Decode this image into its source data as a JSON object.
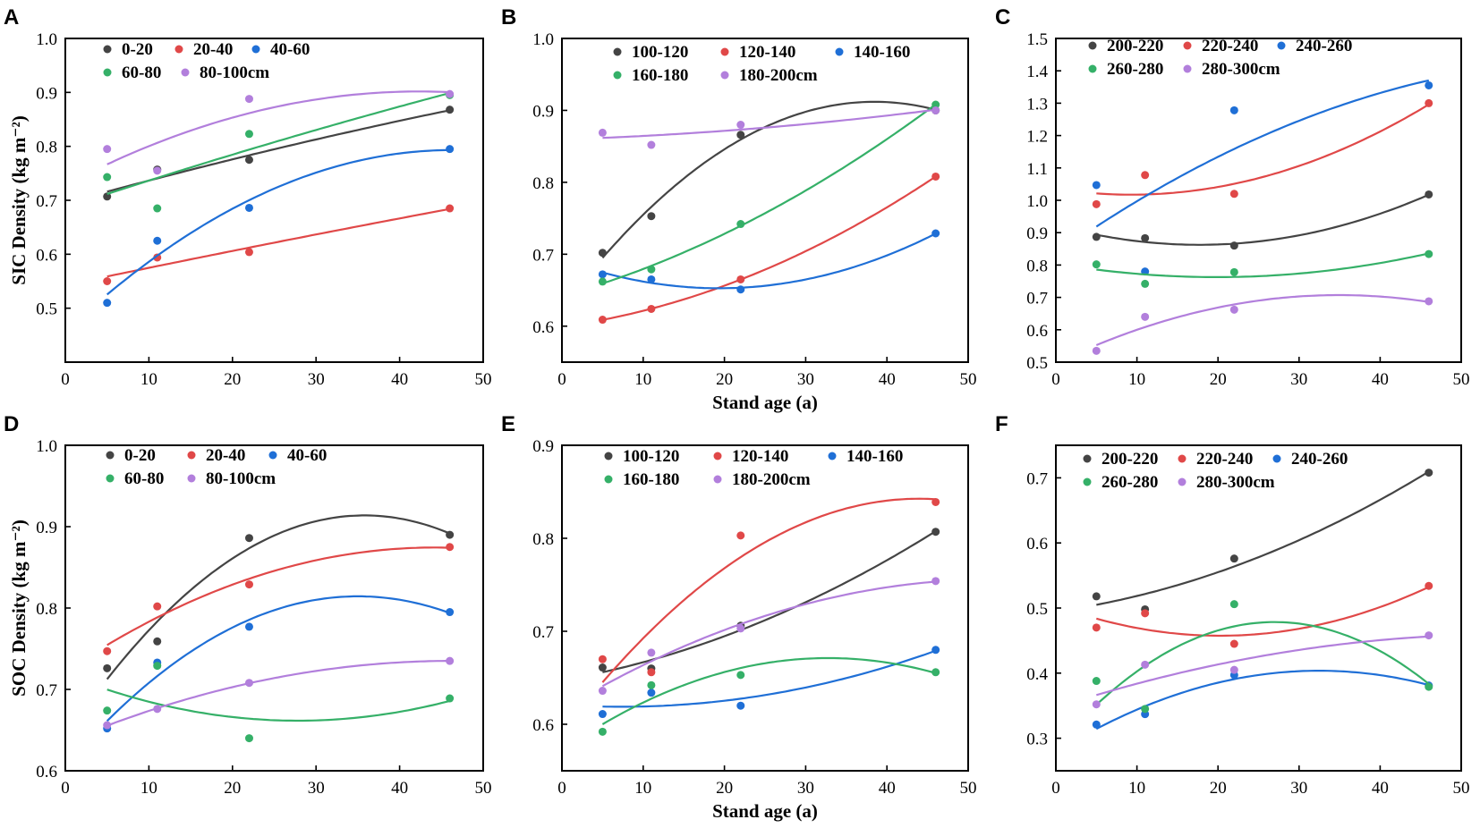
{
  "figure": {
    "shared_xlabel": "Stand age (a)",
    "row_ylabels": [
      "SIC Density (kg m⁻²)",
      "SOC Density (kg m⁻²)"
    ]
  },
  "chart_data": [
    {
      "panel": "A",
      "type": "scatter",
      "fit": "polynomial",
      "xlabel": "",
      "ylabel": "SIC Density (kg m⁻²)",
      "xlim": [
        0,
        50
      ],
      "ylim": [
        0.4,
        1.0
      ],
      "xticks": [
        0,
        10,
        20,
        30,
        40,
        50
      ],
      "yticks": [
        0.5,
        0.6,
        0.7,
        0.8,
        0.9,
        1.0
      ],
      "x": [
        5,
        11,
        22,
        46
      ],
      "series": [
        {
          "name": "0-20",
          "color": "#444444",
          "values": [
            0.707,
            0.757,
            0.775,
            0.868
          ]
        },
        {
          "name": "20-40",
          "color": "#e04848",
          "values": [
            0.55,
            0.594,
            0.604,
            0.685
          ]
        },
        {
          "name": "40-60",
          "color": "#1f6fd6",
          "values": [
            0.51,
            0.625,
            0.686,
            0.795
          ]
        },
        {
          "name": "60-80",
          "color": "#35b068",
          "values": [
            0.743,
            0.685,
            0.823,
            0.895
          ]
        },
        {
          "name": "80-100cm",
          "color": "#b27fdc",
          "values": [
            0.795,
            0.755,
            0.888,
            0.897
          ]
        }
      ]
    },
    {
      "panel": "B",
      "type": "scatter",
      "fit": "polynomial",
      "xlabel": "Stand age (a)",
      "ylabel": "",
      "xlim": [
        0,
        50
      ],
      "ylim": [
        0.55,
        1.0
      ],
      "xticks": [
        0,
        10,
        20,
        30,
        40,
        50
      ],
      "yticks": [
        0.6,
        0.7,
        0.8,
        0.9,
        1.0
      ],
      "x": [
        5,
        11,
        22,
        46
      ],
      "series": [
        {
          "name": "100-120",
          "color": "#444444",
          "values": [
            0.702,
            0.753,
            0.866,
            0.9
          ]
        },
        {
          "name": "120-140",
          "color": "#e04848",
          "values": [
            0.609,
            0.624,
            0.665,
            0.808
          ]
        },
        {
          "name": "140-160",
          "color": "#1f6fd6",
          "values": [
            0.672,
            0.665,
            0.651,
            0.729
          ]
        },
        {
          "name": "160-180",
          "color": "#35b068",
          "values": [
            0.662,
            0.679,
            0.742,
            0.908
          ]
        },
        {
          "name": "180-200cm",
          "color": "#b27fdc",
          "values": [
            0.869,
            0.852,
            0.88,
            0.9
          ]
        }
      ]
    },
    {
      "panel": "C",
      "type": "scatter",
      "fit": "polynomial",
      "xlabel": "",
      "ylabel": "",
      "xlim": [
        0,
        50
      ],
      "ylim": [
        0.5,
        1.5
      ],
      "xticks": [
        0,
        10,
        20,
        30,
        40,
        50
      ],
      "yticks": [
        0.5,
        0.6,
        0.7,
        0.8,
        0.9,
        1.0,
        1.1,
        1.2,
        1.3,
        1.4,
        1.5
      ],
      "x": [
        5,
        11,
        22,
        46
      ],
      "series": [
        {
          "name": "200-220",
          "color": "#444444",
          "values": [
            0.887,
            0.883,
            0.86,
            1.018
          ]
        },
        {
          "name": "220-240",
          "color": "#e04848",
          "values": [
            0.988,
            1.078,
            1.02,
            1.3
          ]
        },
        {
          "name": "240-260",
          "color": "#1f6fd6",
          "values": [
            1.047,
            0.78,
            1.278,
            1.355
          ]
        },
        {
          "name": "260-280",
          "color": "#35b068",
          "values": [
            0.802,
            0.742,
            0.778,
            0.834
          ]
        },
        {
          "name": "280-300cm",
          "color": "#b27fdc",
          "values": [
            0.535,
            0.64,
            0.662,
            0.688
          ]
        }
      ]
    },
    {
      "panel": "D",
      "type": "scatter",
      "fit": "polynomial",
      "xlabel": "",
      "ylabel": "SOC Density (kg m⁻²)",
      "xlim": [
        0,
        50
      ],
      "ylim": [
        0.6,
        1.0
      ],
      "xticks": [
        0,
        10,
        20,
        30,
        40,
        50
      ],
      "yticks": [
        0.6,
        0.7,
        0.8,
        0.9,
        1.0
      ],
      "x": [
        5,
        11,
        22,
        46
      ],
      "series": [
        {
          "name": "0-20",
          "color": "#444444",
          "values": [
            0.726,
            0.759,
            0.886,
            0.89
          ]
        },
        {
          "name": "20-40",
          "color": "#e04848",
          "values": [
            0.747,
            0.802,
            0.829,
            0.875
          ]
        },
        {
          "name": "40-60",
          "color": "#1f6fd6",
          "values": [
            0.652,
            0.733,
            0.777,
            0.795
          ]
        },
        {
          "name": "60-80",
          "color": "#35b068",
          "values": [
            0.674,
            0.729,
            0.64,
            0.689
          ]
        },
        {
          "name": "80-100cm",
          "color": "#b27fdc",
          "values": [
            0.656,
            0.676,
            0.708,
            0.735
          ]
        }
      ]
    },
    {
      "panel": "E",
      "type": "scatter",
      "fit": "polynomial",
      "xlabel": "Stand age (a)",
      "ylabel": "",
      "xlim": [
        0,
        50
      ],
      "ylim": [
        0.55,
        0.9
      ],
      "xticks": [
        0,
        10,
        20,
        30,
        40,
        50
      ],
      "yticks": [
        0.6,
        0.7,
        0.8,
        0.9
      ],
      "x": [
        5,
        11,
        22,
        46
      ],
      "series": [
        {
          "name": "100-120",
          "color": "#444444",
          "values": [
            0.661,
            0.66,
            0.706,
            0.807
          ]
        },
        {
          "name": "120-140",
          "color": "#e04848",
          "values": [
            0.67,
            0.656,
            0.803,
            0.839
          ]
        },
        {
          "name": "140-160",
          "color": "#1f6fd6",
          "values": [
            0.611,
            0.634,
            0.62,
            0.68
          ]
        },
        {
          "name": "160-180",
          "color": "#35b068",
          "values": [
            0.592,
            0.642,
            0.653,
            0.656
          ]
        },
        {
          "name": "180-200cm",
          "color": "#b27fdc",
          "values": [
            0.636,
            0.677,
            0.703,
            0.754
          ]
        }
      ]
    },
    {
      "panel": "F",
      "type": "scatter",
      "fit": "polynomial",
      "xlabel": "",
      "ylabel": "",
      "xlim": [
        0,
        50
      ],
      "ylim": [
        0.25,
        0.75
      ],
      "xticks": [
        0,
        10,
        20,
        30,
        40,
        50
      ],
      "yticks": [
        0.3,
        0.4,
        0.5,
        0.6,
        0.7
      ],
      "x": [
        5,
        11,
        22,
        46
      ],
      "series": [
        {
          "name": "200-220",
          "color": "#444444",
          "values": [
            0.518,
            0.498,
            0.576,
            0.708
          ]
        },
        {
          "name": "220-240",
          "color": "#e04848",
          "values": [
            0.47,
            0.492,
            0.445,
            0.534
          ]
        },
        {
          "name": "240-260",
          "color": "#1f6fd6",
          "values": [
            0.321,
            0.337,
            0.397,
            0.381
          ]
        },
        {
          "name": "260-280",
          "color": "#35b068",
          "values": [
            0.388,
            0.345,
            0.506,
            0.379
          ]
        },
        {
          "name": "280-300cm",
          "color": "#b27fdc",
          "values": [
            0.352,
            0.413,
            0.405,
            0.458
          ]
        }
      ]
    }
  ]
}
